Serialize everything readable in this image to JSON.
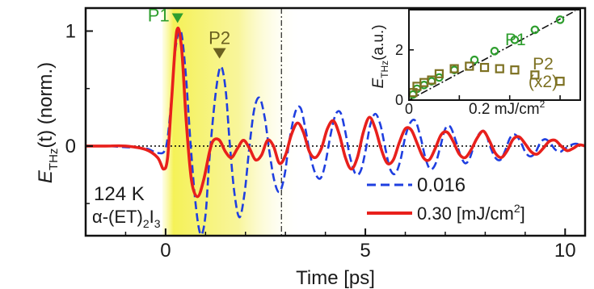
{
  "chart_data": [
    {
      "type": "line",
      "xlabel": "Time [ps]",
      "ylabel_main": "E",
      "ylabel_sub": "THz",
      "ylabel_rest": "(t) (norm.)",
      "xlim": [
        -2,
        10.5
      ],
      "ylim": [
        -0.78,
        1.2
      ],
      "xticks": [
        0,
        5,
        10
      ],
      "yticks": [
        0,
        1
      ],
      "xtick_labels": [
        "0",
        "5",
        "10"
      ],
      "ytick_labels": [
        "0",
        "1"
      ],
      "shaded_region_ps": [
        0,
        3.4
      ],
      "vline_ps": 2.9,
      "zero_line": true,
      "annotations": {
        "temperature": "124 K",
        "material": {
          "prefix": "α-(ET)",
          "sub1": "2",
          "mid": "I",
          "sub2": "3"
        },
        "P1": {
          "label": "P1",
          "x": 0.3,
          "y": 1.0,
          "color": "#2e9e2e"
        },
        "P2": {
          "label": "P2",
          "x": 1.35,
          "y": 0.69,
          "color": "#6b6020"
        }
      },
      "series": [
        {
          "name": "0.016",
          "style": "dashed",
          "color": "#1f3fe0",
          "points": [
            [
              -2.0,
              0.0
            ],
            [
              -1.5,
              0.0
            ],
            [
              -1.0,
              -0.01
            ],
            [
              -0.5,
              -0.02
            ],
            [
              -0.2,
              -0.06
            ],
            [
              0.0,
              -0.02
            ],
            [
              0.12,
              0.3
            ],
            [
              0.25,
              0.85
            ],
            [
              0.38,
              1.0
            ],
            [
              0.5,
              0.65
            ],
            [
              0.62,
              0.05
            ],
            [
              0.75,
              -0.5
            ],
            [
              0.88,
              -0.77
            ],
            [
              1.0,
              -0.6
            ],
            [
              1.1,
              -0.1
            ],
            [
              1.25,
              0.45
            ],
            [
              1.38,
              0.69
            ],
            [
              1.5,
              0.5
            ],
            [
              1.6,
              0.05
            ],
            [
              1.72,
              -0.4
            ],
            [
              1.85,
              -0.62
            ],
            [
              1.98,
              -0.4
            ],
            [
              2.1,
              0.0
            ],
            [
              2.22,
              0.32
            ],
            [
              2.35,
              0.42
            ],
            [
              2.48,
              0.25
            ],
            [
              2.6,
              -0.05
            ],
            [
              2.72,
              -0.3
            ],
            [
              2.85,
              -0.4
            ],
            [
              2.98,
              -0.25
            ],
            [
              3.1,
              0.05
            ],
            [
              3.25,
              0.3
            ],
            [
              3.38,
              0.33
            ],
            [
              3.5,
              0.15
            ],
            [
              3.62,
              -0.08
            ],
            [
              3.75,
              -0.24
            ],
            [
              3.88,
              -0.28
            ],
            [
              4.0,
              -0.15
            ],
            [
              4.12,
              0.08
            ],
            [
              4.25,
              0.27
            ],
            [
              4.38,
              0.29
            ],
            [
              4.5,
              0.12
            ],
            [
              4.62,
              -0.1
            ],
            [
              4.75,
              -0.24
            ],
            [
              4.88,
              -0.22
            ],
            [
              5.0,
              -0.05
            ],
            [
              5.12,
              0.18
            ],
            [
              5.25,
              0.28
            ],
            [
              5.38,
              0.18
            ],
            [
              5.5,
              -0.02
            ],
            [
              5.62,
              -0.2
            ],
            [
              5.75,
              -0.24
            ],
            [
              5.88,
              -0.12
            ],
            [
              6.0,
              0.08
            ],
            [
              6.12,
              0.2
            ],
            [
              6.25,
              0.22
            ],
            [
              6.38,
              0.08
            ],
            [
              6.5,
              -0.1
            ],
            [
              6.62,
              -0.2
            ],
            [
              6.75,
              -0.16
            ],
            [
              6.88,
              0.0
            ],
            [
              7.0,
              0.15
            ],
            [
              7.12,
              0.17
            ],
            [
              7.25,
              0.06
            ],
            [
              7.38,
              -0.08
            ],
            [
              7.5,
              -0.15
            ],
            [
              7.62,
              -0.1
            ],
            [
              7.75,
              0.04
            ],
            [
              7.88,
              0.12
            ],
            [
              8.0,
              0.12
            ],
            [
              8.12,
              0.0
            ],
            [
              8.25,
              -0.1
            ],
            [
              8.38,
              -0.12
            ],
            [
              8.5,
              -0.04
            ],
            [
              8.62,
              0.07
            ],
            [
              8.75,
              0.1
            ],
            [
              8.88,
              0.04
            ],
            [
              9.0,
              -0.05
            ],
            [
              9.12,
              -0.09
            ],
            [
              9.25,
              -0.06
            ],
            [
              9.38,
              0.03
            ],
            [
              9.5,
              0.06
            ],
            [
              9.62,
              0.03
            ],
            [
              9.75,
              -0.03
            ],
            [
              9.88,
              -0.05
            ],
            [
              10.0,
              -0.02
            ],
            [
              10.25,
              0.02
            ],
            [
              10.5,
              0.0
            ]
          ]
        },
        {
          "name": "0.30 [mJ/cm²]",
          "style": "solid",
          "color": "#e8201c",
          "points": [
            [
              -2.0,
              0.0
            ],
            [
              -1.5,
              0.0
            ],
            [
              -1.0,
              0.0
            ],
            [
              -0.5,
              -0.03
            ],
            [
              -0.2,
              -0.1
            ],
            [
              -0.05,
              -0.2
            ],
            [
              0.05,
              -0.1
            ],
            [
              0.15,
              0.4
            ],
            [
              0.28,
              1.0
            ],
            [
              0.4,
              0.85
            ],
            [
              0.52,
              0.2
            ],
            [
              0.65,
              -0.3
            ],
            [
              0.8,
              -0.44
            ],
            [
              0.95,
              -0.3
            ],
            [
              1.1,
              -0.05
            ],
            [
              1.2,
              0.05
            ],
            [
              1.35,
              0.05
            ],
            [
              1.5,
              -0.05
            ],
            [
              1.65,
              -0.1
            ],
            [
              1.8,
              -0.02
            ],
            [
              1.95,
              0.05
            ],
            [
              2.1,
              -0.02
            ],
            [
              2.25,
              -0.12
            ],
            [
              2.4,
              -0.08
            ],
            [
              2.55,
              0.05
            ],
            [
              2.7,
              0.0
            ],
            [
              2.85,
              -0.15
            ],
            [
              3.0,
              -0.08
            ],
            [
              3.15,
              0.1
            ],
            [
              3.3,
              0.2
            ],
            [
              3.45,
              0.12
            ],
            [
              3.6,
              -0.05
            ],
            [
              3.75,
              -0.1
            ],
            [
              3.9,
              -0.02
            ],
            [
              4.05,
              0.15
            ],
            [
              4.2,
              0.22
            ],
            [
              4.35,
              0.1
            ],
            [
              4.5,
              -0.1
            ],
            [
              4.65,
              -0.2
            ],
            [
              4.8,
              -0.1
            ],
            [
              4.95,
              0.12
            ],
            [
              5.1,
              0.25
            ],
            [
              5.25,
              0.15
            ],
            [
              5.4,
              -0.03
            ],
            [
              5.55,
              -0.15
            ],
            [
              5.7,
              -0.12
            ],
            [
              5.85,
              0.03
            ],
            [
              6.0,
              0.15
            ],
            [
              6.15,
              0.14
            ],
            [
              6.3,
              0.02
            ],
            [
              6.45,
              -0.1
            ],
            [
              6.6,
              -0.12
            ],
            [
              6.75,
              -0.02
            ],
            [
              6.9,
              0.1
            ],
            [
              7.05,
              0.12
            ],
            [
              7.2,
              0.04
            ],
            [
              7.35,
              -0.07
            ],
            [
              7.5,
              -0.1
            ],
            [
              7.65,
              -0.03
            ],
            [
              7.8,
              0.07
            ],
            [
              7.95,
              0.13
            ],
            [
              8.1,
              0.05
            ],
            [
              8.25,
              -0.06
            ],
            [
              8.4,
              -0.1
            ],
            [
              8.55,
              -0.04
            ],
            [
              8.7,
              0.06
            ],
            [
              8.85,
              0.08
            ],
            [
              9.0,
              0.02
            ],
            [
              9.15,
              -0.05
            ],
            [
              9.3,
              -0.07
            ],
            [
              9.45,
              -0.02
            ],
            [
              9.6,
              0.04
            ],
            [
              9.75,
              0.05
            ],
            [
              9.9,
              0.0
            ],
            [
              10.05,
              -0.04
            ],
            [
              10.2,
              -0.02
            ],
            [
              10.35,
              0.01
            ],
            [
              10.5,
              0.0
            ]
          ]
        }
      ],
      "legend": {
        "placement": "bottom-right",
        "entries": [
          {
            "label": "0.016",
            "style": "dashed",
            "color": "#1f3fe0"
          },
          {
            "label": "0.30 [mJ/cm",
            "sup": "2",
            "tail": "]",
            "style": "solid",
            "color": "#e8201c"
          }
        ]
      }
    },
    {
      "type": "scatter",
      "placement": "inset top-right",
      "ylabel_main": "E",
      "ylabel_sub": "THz",
      "ylabel_rest": "(a.u.)",
      "xlabel": "0.2 mJ/cm",
      "xlabel_sup": "2",
      "xlim": [
        0,
        0.34
      ],
      "ylim": [
        0,
        3.6
      ],
      "yticks": [
        0,
        2
      ],
      "ytick_labels": [
        "0",
        "2"
      ],
      "xtick_labels": [
        "0"
      ],
      "fit_line": {
        "from": [
          0,
          0
        ],
        "to": [
          0.33,
          3.55
        ],
        "style": "dash-dot"
      },
      "series": [
        {
          "name": "P1",
          "color": "#2e9e2e",
          "marker": "circle",
          "x": [
            0.008,
            0.016,
            0.03,
            0.045,
            0.06,
            0.09,
            0.13,
            0.17,
            0.21,
            0.25,
            0.3
          ],
          "y": [
            0.22,
            0.45,
            0.6,
            0.75,
            0.9,
            1.2,
            1.6,
            1.95,
            2.4,
            2.8,
            3.2
          ]
        },
        {
          "name": "P2",
          "annotation": "(x2)",
          "color": "#7d7122",
          "marker": "square",
          "x": [
            0.008,
            0.016,
            0.03,
            0.045,
            0.06,
            0.09,
            0.12,
            0.15,
            0.18,
            0.21,
            0.25,
            0.3
          ],
          "y": [
            0.3,
            0.55,
            0.7,
            0.8,
            1.05,
            1.25,
            1.35,
            1.3,
            1.25,
            1.2,
            1.0,
            0.75
          ]
        }
      ]
    }
  ]
}
